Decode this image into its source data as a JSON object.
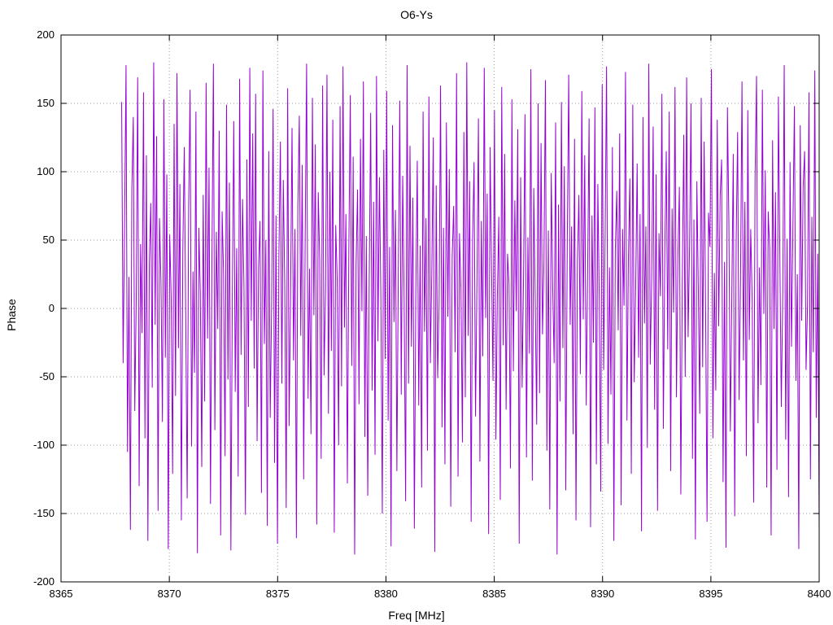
{
  "chart_data": {
    "type": "line",
    "title": "O6-Ys",
    "xlabel": "Freq [MHz]",
    "ylabel": "Phase",
    "xlim": [
      8365,
      8400
    ],
    "ylim": [
      -200,
      200
    ],
    "xticks": [
      8365,
      8370,
      8375,
      8380,
      8385,
      8390,
      8395,
      8400
    ],
    "yticks": [
      -200,
      -150,
      -100,
      -50,
      0,
      50,
      100,
      150,
      200
    ],
    "grid": "dotted",
    "legend": "none",
    "line_color": "#9400d3",
    "grid_color": "#9a9a9a",
    "series": [
      {
        "name": "phase",
        "x_start": 8367.8,
        "x_end": 8400.0,
        "values": [
          151,
          -40,
          62,
          178,
          -105,
          23,
          -162,
          88,
          140,
          -75,
          5,
          169,
          -130,
          47,
          -18,
          158,
          -95,
          112,
          -170,
          33,
          77,
          -58,
          180,
          -12,
          126,
          -148,
          66,
          19,
          -83,
          153,
          -36,
          98,
          -176,
          54,
          8,
          -121,
          135,
          -64,
          172,
          -29,
          91,
          -155,
          42,
          118,
          -7,
          -139,
          73,
          160,
          -101,
          27,
          -47,
          144,
          -179,
          59,
          12,
          -116,
          83,
          -68,
          165,
          -22,
          103,
          -143,
          36,
          179,
          -89,
          56,
          -15,
          130,
          -166,
          71,
          24,
          -108,
          149,
          -52,
          92,
          -177,
          7,
          137,
          -61,
          44,
          -123,
          168,
          -34,
          80,
          15,
          -151,
          109,
          -72,
          176,
          -9,
          128,
          -44,
          157,
          -97,
          30,
          64,
          -135,
          174,
          -26,
          50,
          -159,
          115,
          -80,
          3,
          146,
          -113,
          68,
          -172,
          39,
          122,
          -55,
          94,
          17,
          -146,
          161,
          -86,
          10,
          132,
          -38,
          58,
          -168,
          75,
          141,
          -20,
          105,
          -125,
          48,
          179,
          -66,
          29,
          -92,
          154,
          -5,
          120,
          -158,
          85,
          36,
          -110,
          163,
          -49,
          13,
          171,
          -77,
          100,
          -31,
          138,
          -164,
          61,
          22,
          -100,
          148,
          -57,
          177,
          -14,
          69,
          -128,
          41,
          156,
          -42,
          111,
          -180,
          33,
          87,
          -70,
          124,
          -2,
          166,
          -94,
          53,
          -137,
          19,
          143,
          -60,
          78,
          -107,
          170,
          -24,
          96,
          8,
          -150,
          116,
          -37,
          159,
          -82,
          45,
          -174,
          134,
          -10,
          72,
          -119,
          26,
          152,
          -63,
          97,
          5,
          -141,
          178,
          -55,
          119,
          -28,
          81,
          -161,
          11,
          108,
          -71,
          46,
          -131,
          144,
          -17,
          66,
          -104,
          155,
          -40,
          28,
          125,
          -178,
          90,
          -51,
          3,
          163,
          -87,
          59,
          -114,
          136,
          -6,
          102,
          -145,
          38,
          75,
          -32,
          172,
          -123,
          55,
          14,
          -98,
          129,
          -65,
          180,
          -20,
          93,
          -156,
          50,
          107,
          -79,
          21,
          139,
          -112,
          64,
          -35,
          176,
          -7,
          84,
          -165,
          118,
          31,
          -53,
          145,
          -96,
          9,
          67,
          -140,
          162,
          -27,
          113,
          -74,
          40,
          18,
          -117,
          153,
          -46,
          79,
          -2,
          131,
          -172,
          96,
          -58,
          24,
          142,
          -109,
          52,
          -33,
          175,
          -126,
          88,
          6,
          -85,
          150,
          -62,
          121,
          -19,
          34,
          167,
          -104,
          57,
          -147,
          99,
          16,
          -40,
          136,
          -180,
          76,
          -68,
          151,
          -29,
          104,
          -133,
          47,
          171,
          -12,
          60,
          -92,
          124,
          -155,
          35,
          83,
          -48,
          159,
          -8,
          112,
          -71,
          27,
          139,
          -160,
          68,
          -25,
          147,
          -114,
          91,
          4,
          -134,
          164,
          -45,
          52,
          177,
          -99,
          30,
          -63,
          118,
          -170,
          43,
          86,
          -16,
          128,
          -144,
          58,
          2,
          173,
          -82,
          37,
          95,
          -121,
          149,
          -54,
          15,
          106,
          -36,
          69,
          -163,
          140,
          -11,
          60,
          -102,
          179,
          -41,
          22,
          133,
          -74,
          98,
          -148,
          55,
          9,
          157,
          -88,
          42,
          115,
          -30,
          144,
          -119,
          73,
          -3,
          162,
          -65,
          38,
          89,
          -136,
          18,
          127,
          -50,
          169,
          -21,
          46,
          150,
          -110,
          65,
          -169,
          93,
          14,
          -77,
          154,
          -43,
          122,
          1,
          -156,
          70,
          45,
          175,
          -95,
          26,
          -60,
          138,
          -13,
          82,
          109,
          -127,
          34,
          -175,
          147,
          63,
          -90,
          7,
          113,
          -152,
          49,
          129,
          -67,
          21,
          166,
          -38,
          78,
          -108,
          145,
          -23,
          58,
          5,
          -142,
          97,
          170,
          -84,
          30,
          -56,
          160,
          -4,
          101,
          -131,
          71,
          44,
          -166,
          123,
          -15,
          85,
          -118,
          155,
          37,
          -72,
          12,
          178,
          -96,
          51,
          -138,
          107,
          -28,
          62,
          148,
          -53,
          25,
          -176,
          134,
          -9,
          89,
          115,
          -45,
          2,
          158,
          -125,
          67,
          -32,
          174,
          -80,
          40,
          -161
        ]
      }
    ]
  }
}
